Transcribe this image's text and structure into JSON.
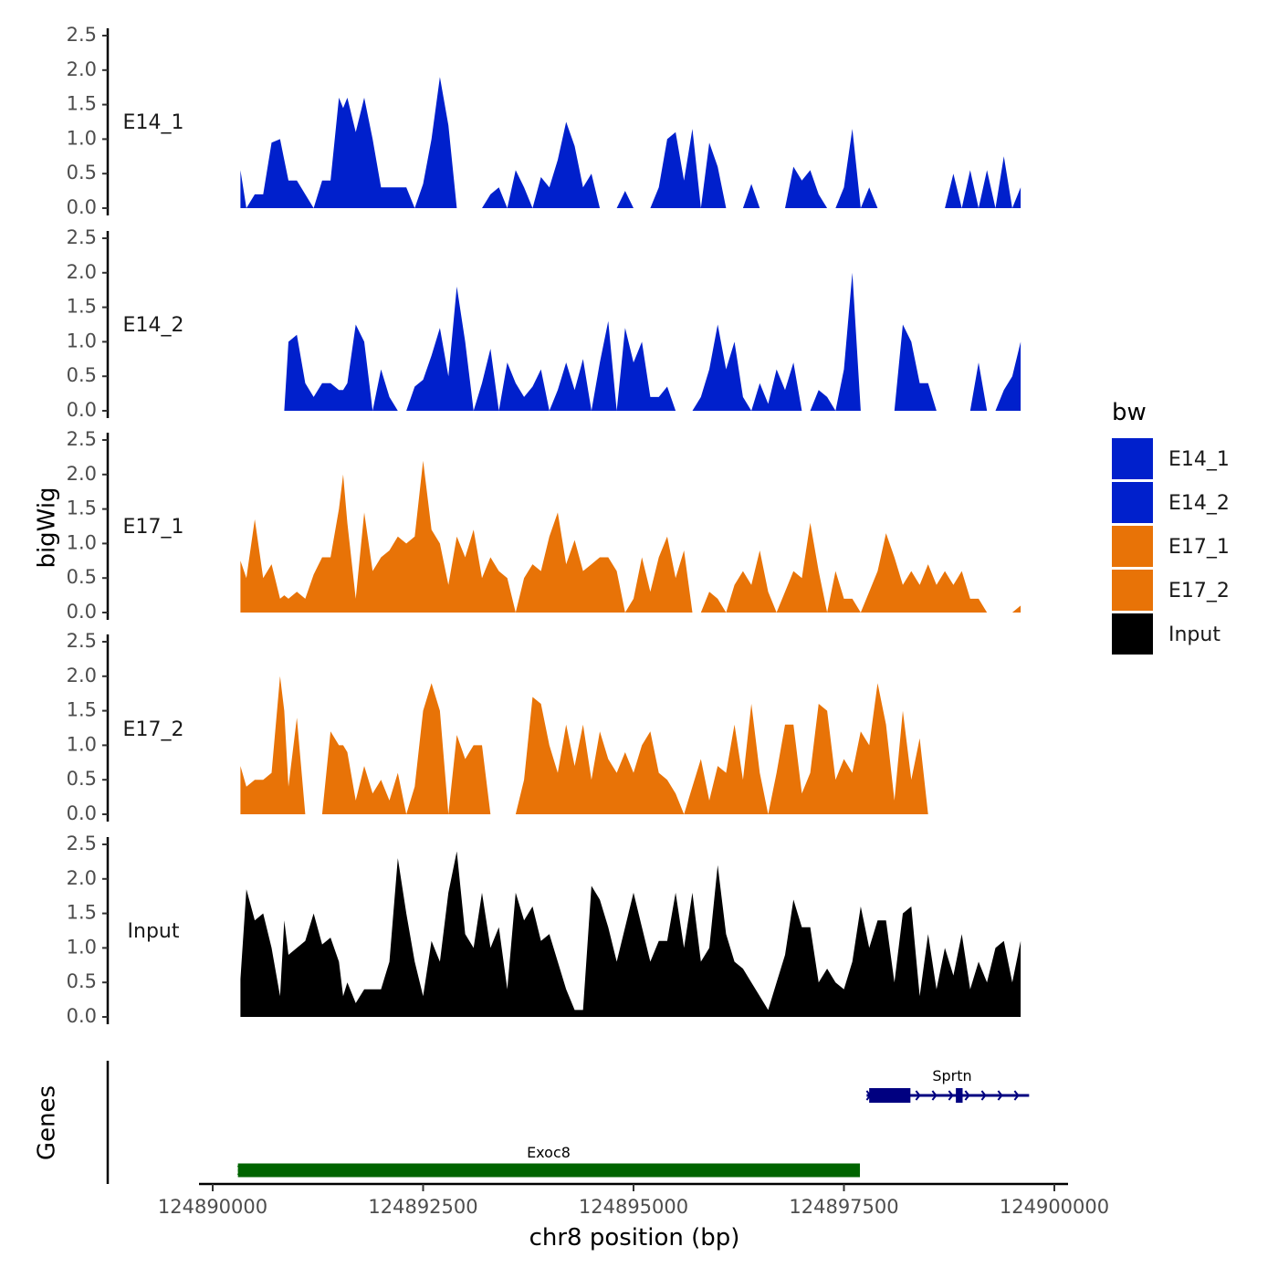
{
  "chart_data": {
    "type": "area",
    "panel_ylabel": "bigWig",
    "genes_ylabel": "Genes",
    "xlabel": "chr8 position (bp)",
    "xlim": [
      124889700,
      124900300
    ],
    "x_ticks": [
      124890000,
      124892500,
      124895000,
      124897500,
      124900000
    ],
    "x_tick_labels": [
      "124890000",
      "124892500",
      "124895000",
      "124897500",
      "124900000"
    ],
    "ylim": [
      0,
      2.5
    ],
    "y_ticks": [
      0.0,
      0.5,
      1.0,
      1.5,
      2.0,
      2.5
    ],
    "y_tick_labels": [
      "0.0",
      "0.5",
      "1.0",
      "1.5",
      "2.0",
      "2.5"
    ],
    "legend": {
      "title": "bw",
      "position": "right",
      "entries": [
        {
          "label": "E14_1",
          "color": "#0020CC"
        },
        {
          "label": "E14_2",
          "color": "#0020CC"
        },
        {
          "label": "E17_1",
          "color": "#E87307"
        },
        {
          "label": "E17_2",
          "color": "#E87307"
        },
        {
          "label": "Input",
          "color": "#000000"
        }
      ]
    },
    "series": [
      {
        "name": "E14_1",
        "color": "#0020CC",
        "x": [
          124890330,
          124890400,
          124890500,
          124890600,
          124890700,
          124890800,
          124890850,
          124890900,
          124891000,
          124891100,
          124891200,
          124891300,
          124891400,
          124891500,
          124891550,
          124891600,
          124891700,
          124891800,
          124891900,
          124892000,
          124892100,
          124892200,
          124892300,
          124892400,
          124892500,
          124892600,
          124892700,
          124892800,
          124892900,
          124893000,
          124893100,
          124893200,
          124893300,
          124893400,
          124893500,
          124893600,
          124893700,
          124893800,
          124893900,
          124894000,
          124894100,
          124894200,
          124894300,
          124894400,
          124894500,
          124894600,
          124894700,
          124894800,
          124894900,
          124895000,
          124895100,
          124895200,
          124895300,
          124895400,
          124895500,
          124895600,
          124895700,
          124895800,
          124895900,
          124896000,
          124896100,
          124896200,
          124896300,
          124896400,
          124896500,
          124896600,
          124896700,
          124896800,
          124896900,
          124897000,
          124897100,
          124897200,
          124897300,
          124897400,
          124897500,
          124897600,
          124897700,
          124897800,
          124897900,
          124898000,
          124898100,
          124898200,
          124898300,
          124898400,
          124898500,
          124898600,
          124898700,
          124898800,
          124898900,
          124899000,
          124899100,
          124899200,
          124899300,
          124899400,
          124899500,
          124899600
        ],
        "values": [
          0.55,
          0.0,
          0.2,
          0.2,
          0.95,
          1.0,
          0.7,
          0.4,
          0.4,
          0.2,
          0.0,
          0.4,
          0.4,
          1.6,
          1.45,
          1.6,
          1.1,
          1.6,
          1.0,
          0.3,
          0.3,
          0.3,
          0.3,
          0.0,
          0.35,
          1.0,
          1.9,
          1.2,
          0.0,
          0.0,
          0.0,
          0.0,
          0.2,
          0.3,
          0.0,
          0.55,
          0.3,
          0.0,
          0.45,
          0.3,
          0.7,
          1.25,
          0.9,
          0.3,
          0.5,
          0.0,
          0.0,
          0.0,
          0.25,
          0.0,
          0.0,
          0.0,
          0.3,
          1.0,
          1.1,
          0.4,
          1.15,
          0.0,
          0.95,
          0.6,
          0.0,
          0.0,
          0.0,
          0.35,
          0.0,
          0.0,
          0.0,
          0.0,
          0.6,
          0.4,
          0.55,
          0.2,
          0.0,
          0.0,
          0.3,
          1.15,
          0.0,
          0.3,
          0.0,
          0.0,
          0.0,
          0.0,
          0.0,
          0.0,
          0.0,
          0.0,
          0.0,
          0.5,
          0.0,
          0.55,
          0.0,
          0.55,
          0.0,
          0.75,
          0.0,
          0.3
        ]
      },
      {
        "name": "E14_2",
        "color": "#0020CC",
        "x": [
          124890330,
          124890400,
          124890500,
          124890600,
          124890700,
          124890800,
          124890850,
          124890900,
          124891000,
          124891100,
          124891200,
          124891300,
          124891400,
          124891500,
          124891550,
          124891600,
          124891700,
          124891800,
          124891900,
          124892000,
          124892100,
          124892200,
          124892300,
          124892400,
          124892500,
          124892600,
          124892700,
          124892800,
          124892900,
          124893000,
          124893100,
          124893200,
          124893300,
          124893400,
          124893500,
          124893600,
          124893700,
          124893800,
          124893900,
          124894000,
          124894100,
          124894200,
          124894300,
          124894400,
          124894500,
          124894600,
          124894700,
          124894800,
          124894900,
          124895000,
          124895100,
          124895200,
          124895300,
          124895400,
          124895500,
          124895600,
          124895700,
          124895800,
          124895900,
          124896000,
          124896100,
          124896200,
          124896300,
          124896400,
          124896500,
          124896600,
          124896700,
          124896800,
          124896900,
          124897000,
          124897100,
          124897200,
          124897300,
          124897400,
          124897500,
          124897600,
          124897700,
          124897800,
          124897900,
          124898000,
          124898100,
          124898200,
          124898300,
          124898400,
          124898500,
          124898600,
          124898700,
          124898800,
          124898900,
          124899000,
          124899100,
          124899200,
          124899300,
          124899400,
          124899500,
          124899600
        ],
        "values": [
          0.0,
          0.0,
          0.0,
          0.0,
          0.0,
          0.0,
          0.0,
          1.0,
          1.1,
          0.4,
          0.2,
          0.4,
          0.4,
          0.3,
          0.3,
          0.4,
          1.25,
          1.0,
          0.0,
          0.6,
          0.2,
          0.0,
          0.0,
          0.35,
          0.45,
          0.8,
          1.2,
          0.5,
          1.8,
          1.0,
          0.0,
          0.4,
          0.9,
          0.0,
          0.7,
          0.4,
          0.2,
          0.35,
          0.6,
          0.0,
          0.3,
          0.7,
          0.3,
          0.75,
          0.0,
          0.7,
          1.3,
          0.0,
          1.2,
          0.7,
          1.0,
          0.2,
          0.2,
          0.35,
          0.0,
          0.0,
          0.0,
          0.2,
          0.6,
          1.25,
          0.6,
          1.0,
          0.2,
          0.0,
          0.4,
          0.1,
          0.6,
          0.3,
          0.7,
          0.0,
          0.0,
          0.3,
          0.2,
          0.0,
          0.6,
          2.0,
          0.0,
          0.0,
          0.0,
          0.0,
          0.0,
          1.25,
          1.0,
          0.4,
          0.4,
          0.0,
          0.0,
          0.0,
          0.0,
          0.0,
          0.7,
          0.0,
          0.0,
          0.3,
          0.5,
          1.0
        ]
      },
      {
        "name": "E17_1",
        "color": "#E87307",
        "x": [
          124890330,
          124890400,
          124890500,
          124890600,
          124890700,
          124890800,
          124890850,
          124890900,
          124891000,
          124891100,
          124891200,
          124891300,
          124891400,
          124891500,
          124891550,
          124891600,
          124891700,
          124891800,
          124891900,
          124892000,
          124892100,
          124892200,
          124892300,
          124892400,
          124892500,
          124892600,
          124892700,
          124892800,
          124892900,
          124893000,
          124893100,
          124893200,
          124893300,
          124893400,
          124893500,
          124893600,
          124893700,
          124893800,
          124893900,
          124894000,
          124894100,
          124894200,
          124894300,
          124894400,
          124894500,
          124894600,
          124894700,
          124894800,
          124894900,
          124895000,
          124895100,
          124895200,
          124895300,
          124895400,
          124895500,
          124895600,
          124895700,
          124895800,
          124895900,
          124896000,
          124896100,
          124896200,
          124896300,
          124896400,
          124896500,
          124896600,
          124896700,
          124896800,
          124896900,
          124897000,
          124897100,
          124897200,
          124897300,
          124897400,
          124897500,
          124897600,
          124897700,
          124897800,
          124897900,
          124898000,
          124898100,
          124898200,
          124898300,
          124898400,
          124898500,
          124898600,
          124898700,
          124898800,
          124898900,
          124899000,
          124899100,
          124899200,
          124899300,
          124899400,
          124899500,
          124899600
        ],
        "values": [
          0.75,
          0.5,
          1.35,
          0.5,
          0.7,
          0.2,
          0.25,
          0.2,
          0.3,
          0.2,
          0.55,
          0.8,
          0.8,
          1.5,
          2.0,
          1.3,
          0.2,
          1.45,
          0.6,
          0.8,
          0.9,
          1.1,
          1.0,
          1.1,
          2.2,
          1.2,
          1.0,
          0.4,
          1.1,
          0.8,
          1.2,
          0.5,
          0.8,
          0.6,
          0.5,
          0.0,
          0.5,
          0.7,
          0.6,
          1.1,
          1.45,
          0.7,
          1.05,
          0.6,
          0.7,
          0.8,
          0.8,
          0.6,
          0.0,
          0.2,
          0.8,
          0.3,
          0.8,
          1.1,
          0.5,
          0.9,
          0.0,
          0.0,
          0.3,
          0.2,
          0.0,
          0.4,
          0.6,
          0.4,
          0.9,
          0.3,
          0.0,
          0.3,
          0.6,
          0.5,
          1.3,
          0.6,
          0.0,
          0.6,
          0.2,
          0.2,
          0.0,
          0.3,
          0.6,
          1.15,
          0.8,
          0.4,
          0.6,
          0.4,
          0.7,
          0.4,
          0.6,
          0.4,
          0.6,
          0.2,
          0.2,
          0.0,
          0.0,
          0.0,
          0.0,
          0.1
        ]
      },
      {
        "name": "E17_2",
        "color": "#E87307",
        "x": [
          124890330,
          124890400,
          124890500,
          124890600,
          124890700,
          124890800,
          124890850,
          124890900,
          124891000,
          124891100,
          124891200,
          124891300,
          124891400,
          124891500,
          124891550,
          124891600,
          124891700,
          124891800,
          124891900,
          124892000,
          124892100,
          124892200,
          124892300,
          124892400,
          124892500,
          124892600,
          124892700,
          124892800,
          124892900,
          124893000,
          124893100,
          124893200,
          124893300,
          124893400,
          124893500,
          124893600,
          124893700,
          124893800,
          124893900,
          124894000,
          124894100,
          124894200,
          124894300,
          124894400,
          124894500,
          124894600,
          124894700,
          124894800,
          124894900,
          124895000,
          124895100,
          124895200,
          124895300,
          124895400,
          124895500,
          124895600,
          124895700,
          124895800,
          124895900,
          124896000,
          124896100,
          124896200,
          124896300,
          124896400,
          124896500,
          124896600,
          124896700,
          124896800,
          124896900,
          124897000,
          124897100,
          124897200,
          124897300,
          124897400,
          124897500,
          124897600,
          124897700,
          124897800,
          124897900,
          124898000,
          124898100,
          124898200,
          124898300,
          124898400,
          124898500,
          124898600,
          124898700,
          124898800,
          124898900,
          124899000,
          124899100,
          124899200,
          124899300,
          124899400,
          124899500,
          124899600
        ],
        "values": [
          0.7,
          0.4,
          0.5,
          0.5,
          0.6,
          2.0,
          1.5,
          0.4,
          1.4,
          0.0,
          0.0,
          0.0,
          1.2,
          1.0,
          1.0,
          0.9,
          0.2,
          0.7,
          0.3,
          0.5,
          0.2,
          0.6,
          0.0,
          0.4,
          1.5,
          1.9,
          1.5,
          0.0,
          1.15,
          0.8,
          1.0,
          1.0,
          0.0,
          0.0,
          0.0,
          0.0,
          0.5,
          1.7,
          1.6,
          1.0,
          0.6,
          1.3,
          0.7,
          1.3,
          0.5,
          1.2,
          0.8,
          0.6,
          0.9,
          0.6,
          1.0,
          1.2,
          0.6,
          0.5,
          0.3,
          0.0,
          0.4,
          0.8,
          0.2,
          0.7,
          0.6,
          1.3,
          0.5,
          1.6,
          0.6,
          0.0,
          0.6,
          1.3,
          1.3,
          0.3,
          0.6,
          1.6,
          1.5,
          0.5,
          0.8,
          0.6,
          1.2,
          1.0,
          1.9,
          1.3,
          0.2,
          1.5,
          0.5,
          1.1,
          0.0,
          0.0,
          0.0,
          0.0,
          0.0,
          0.0,
          0.0,
          0.0,
          0.0,
          0.0,
          0.0,
          0.0
        ]
      },
      {
        "name": "Input",
        "color": "#000000",
        "x": [
          124890330,
          124890400,
          124890500,
          124890600,
          124890700,
          124890800,
          124890850,
          124890900,
          124891000,
          124891100,
          124891200,
          124891300,
          124891400,
          124891500,
          124891550,
          124891600,
          124891700,
          124891800,
          124891900,
          124892000,
          124892100,
          124892200,
          124892300,
          124892400,
          124892500,
          124892600,
          124892700,
          124892800,
          124892900,
          124893000,
          124893100,
          124893200,
          124893300,
          124893400,
          124893500,
          124893600,
          124893700,
          124893800,
          124893900,
          124894000,
          124894100,
          124894200,
          124894300,
          124894400,
          124894500,
          124894600,
          124894700,
          124894800,
          124894900,
          124895000,
          124895100,
          124895200,
          124895300,
          124895400,
          124895500,
          124895600,
          124895700,
          124895800,
          124895900,
          124896000,
          124896100,
          124896200,
          124896300,
          124896400,
          124896500,
          124896600,
          124896700,
          124896800,
          124896900,
          124897000,
          124897100,
          124897200,
          124897300,
          124897400,
          124897500,
          124897600,
          124897700,
          124897800,
          124897900,
          124898000,
          124898100,
          124898200,
          124898300,
          124898400,
          124898500,
          124898600,
          124898700,
          124898800,
          124898900,
          124899000,
          124899100,
          124899200,
          124899300,
          124899400,
          124899500,
          124899600
        ],
        "values": [
          0.55,
          1.85,
          1.4,
          1.5,
          1.0,
          0.3,
          1.4,
          0.9,
          1.0,
          1.1,
          1.5,
          1.05,
          1.15,
          0.8,
          0.3,
          0.5,
          0.2,
          0.4,
          0.4,
          0.4,
          0.8,
          2.3,
          1.5,
          0.8,
          0.3,
          1.1,
          0.8,
          1.8,
          2.4,
          1.2,
          1.0,
          1.8,
          1.0,
          1.3,
          0.4,
          1.8,
          1.4,
          1.6,
          1.1,
          1.2,
          0.8,
          0.4,
          0.1,
          0.1,
          1.9,
          1.7,
          1.3,
          0.8,
          1.3,
          1.8,
          1.3,
          0.8,
          1.1,
          1.1,
          1.8,
          1.0,
          1.8,
          0.8,
          1.0,
          2.2,
          1.2,
          0.8,
          0.7,
          0.5,
          0.3,
          0.1,
          0.5,
          0.9,
          1.7,
          1.3,
          1.3,
          0.5,
          0.7,
          0.5,
          0.4,
          0.8,
          1.6,
          1.0,
          1.4,
          1.4,
          0.5,
          1.5,
          1.6,
          0.3,
          1.2,
          0.4,
          1.0,
          0.6,
          1.2,
          0.4,
          0.8,
          0.5,
          1.0,
          1.1,
          0.5,
          1.1
        ]
      }
    ],
    "genes": [
      {
        "name": "Sprtn",
        "start": 124897770,
        "end": 124899700,
        "strand": "+",
        "color": "#000080",
        "exons": [
          [
            124897800,
            124898290
          ],
          [
            124898830,
            124898910
          ]
        ]
      },
      {
        "name": "Exoc8",
        "start": 124890300,
        "end": 124897690,
        "strand": "+",
        "color": "#006400",
        "exons": [
          [
            124890300,
            124897690
          ]
        ]
      }
    ]
  }
}
